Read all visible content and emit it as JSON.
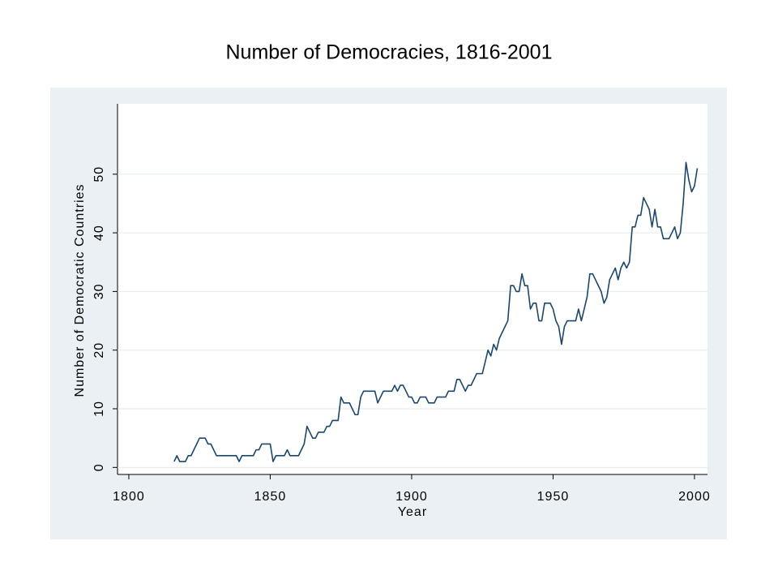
{
  "chart_data": {
    "type": "line",
    "title": "Number of Democracies, 1816-2001",
    "xlabel": "Year",
    "ylabel": "Number of Democratic Countries",
    "x": [
      1816,
      1817,
      1818,
      1819,
      1820,
      1821,
      1822,
      1823,
      1824,
      1825,
      1826,
      1827,
      1828,
      1829,
      1830,
      1831,
      1832,
      1833,
      1834,
      1835,
      1836,
      1837,
      1838,
      1839,
      1840,
      1841,
      1842,
      1843,
      1844,
      1845,
      1846,
      1847,
      1848,
      1849,
      1850,
      1851,
      1852,
      1853,
      1854,
      1855,
      1856,
      1857,
      1858,
      1859,
      1860,
      1861,
      1862,
      1863,
      1864,
      1865,
      1866,
      1867,
      1868,
      1869,
      1870,
      1871,
      1872,
      1873,
      1874,
      1875,
      1876,
      1877,
      1878,
      1879,
      1880,
      1881,
      1882,
      1883,
      1884,
      1885,
      1886,
      1887,
      1888,
      1889,
      1890,
      1891,
      1892,
      1893,
      1894,
      1895,
      1896,
      1897,
      1898,
      1899,
      1900,
      1901,
      1902,
      1903,
      1904,
      1905,
      1906,
      1907,
      1908,
      1909,
      1910,
      1911,
      1912,
      1913,
      1914,
      1915,
      1916,
      1917,
      1918,
      1919,
      1920,
      1921,
      1922,
      1923,
      1924,
      1925,
      1926,
      1927,
      1928,
      1929,
      1930,
      1931,
      1932,
      1933,
      1934,
      1935,
      1936,
      1937,
      1938,
      1939,
      1940,
      1941,
      1942,
      1943,
      1944,
      1945,
      1946,
      1947,
      1948,
      1949,
      1950,
      1951,
      1952,
      1953,
      1954,
      1955,
      1956,
      1957,
      1958,
      1959,
      1960,
      1961,
      1962,
      1963,
      1964,
      1965,
      1966,
      1967,
      1968,
      1969,
      1970,
      1971,
      1972,
      1973,
      1974,
      1975,
      1976,
      1977,
      1978,
      1979,
      1980,
      1981,
      1982,
      1983,
      1984,
      1985,
      1986,
      1987,
      1988,
      1989,
      1990,
      1991,
      1992,
      1993,
      1994,
      1995,
      1996,
      1997,
      1998,
      1999,
      2000,
      2001
    ],
    "values": [
      1,
      2,
      1,
      1,
      1,
      2,
      2,
      3,
      4,
      5,
      5,
      5,
      4,
      4,
      3,
      2,
      2,
      2,
      2,
      2,
      2,
      2,
      2,
      1,
      2,
      2,
      2,
      2,
      2,
      3,
      3,
      4,
      4,
      4,
      4,
      1,
      2,
      2,
      2,
      2,
      3,
      2,
      2,
      2,
      2,
      3,
      4,
      7,
      6,
      5,
      5,
      6,
      6,
      6,
      7,
      7,
      8,
      8,
      8,
      12,
      11,
      11,
      11,
      10,
      9,
      9,
      12,
      13,
      13,
      13,
      13,
      13,
      11,
      12,
      13,
      13,
      13,
      13,
      14,
      13,
      14,
      14,
      13,
      12,
      12,
      11,
      11,
      12,
      12,
      12,
      11,
      11,
      11,
      12,
      12,
      12,
      12,
      13,
      13,
      13,
      15,
      15,
      14,
      13,
      14,
      14,
      15,
      16,
      16,
      16,
      18,
      20,
      19,
      21,
      20,
      22,
      23,
      24,
      25,
      31,
      31,
      30,
      30,
      33,
      31,
      31,
      27,
      28,
      28,
      25,
      25,
      28,
      28,
      28,
      27,
      25,
      24,
      21,
      24,
      25,
      25,
      25,
      25,
      27,
      25,
      27,
      29,
      33,
      33,
      32,
      31,
      30,
      28,
      29,
      32,
      33,
      34,
      32,
      34,
      35,
      34,
      35,
      41,
      41,
      43,
      43,
      46,
      45,
      44,
      41,
      44,
      41,
      41,
      39,
      39,
      39,
      40,
      41,
      39,
      40,
      45,
      52,
      49,
      47,
      48,
      51
    ],
    "color": "#1a476f",
    "xlim": [
      1796,
      2004.6
    ],
    "xticks": [
      1800,
      1850,
      1900,
      1950,
      2000
    ],
    "ylim": [
      -1.2,
      62
    ],
    "yticks": [
      0,
      10,
      20,
      30,
      40,
      50
    ],
    "grid": true
  }
}
